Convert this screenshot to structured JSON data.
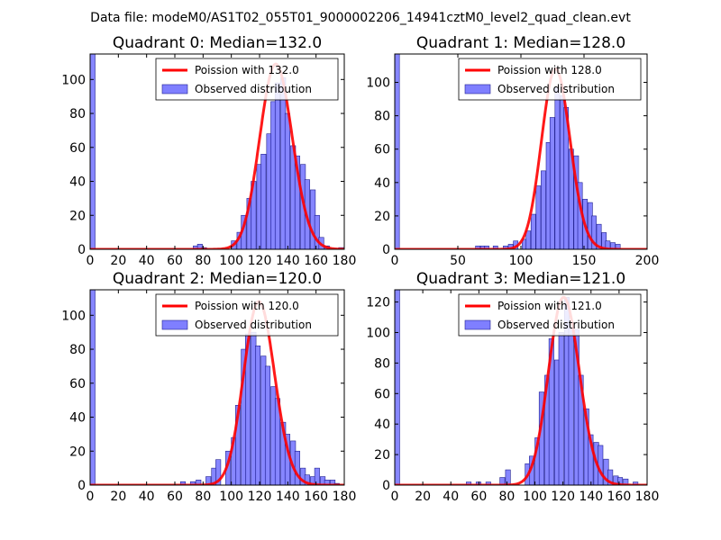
{
  "figure_title": "Data file: modeM0/AS1T02_055T01_9000002206_14941cztM0_level2_quad_clean.evt",
  "colors": {
    "poisson": "#ff0000",
    "hist_fill": "#7f7fff",
    "hist_edge": "#1f1f8f"
  },
  "chart_data": [
    {
      "type": "bar",
      "title": "Quadrant 0: Median=132.0",
      "legend": [
        "Poission with 132.0",
        "Observed distribution"
      ],
      "legend_position": "top-right",
      "xlim": [
        0,
        180
      ],
      "ylim": [
        0,
        115
      ],
      "xticks": [
        0,
        20,
        40,
        60,
        80,
        100,
        120,
        140,
        160,
        180
      ],
      "yticks": [
        0,
        20,
        40,
        60,
        80,
        100
      ],
      "lambda": 132.0,
      "peak": 109,
      "bin_width": 3.5,
      "bins": [
        [
          0,
          115
        ],
        [
          73,
          2
        ],
        [
          76,
          3
        ],
        [
          79,
          1
        ],
        [
          100,
          5
        ],
        [
          104,
          10
        ],
        [
          107,
          20
        ],
        [
          111,
          30
        ],
        [
          114,
          40
        ],
        [
          118,
          50
        ],
        [
          121,
          56
        ],
        [
          125,
          68
        ],
        [
          128,
          87
        ],
        [
          131,
          98
        ],
        [
          135,
          101
        ],
        [
          138,
          80
        ],
        [
          142,
          61
        ],
        [
          145,
          55
        ],
        [
          149,
          50
        ],
        [
          152,
          41
        ],
        [
          156,
          35
        ],
        [
          159,
          20
        ],
        [
          162,
          7
        ],
        [
          166,
          2
        ],
        [
          176,
          1
        ],
        [
          180,
          2
        ]
      ]
    },
    {
      "type": "bar",
      "title": "Quadrant 1: Median=128.0",
      "legend": [
        "Poission with 128.0",
        "Observed distribution"
      ],
      "legend_position": "top-right",
      "xlim": [
        0,
        200
      ],
      "ylim": [
        0,
        117
      ],
      "xticks": [
        0,
        50,
        100,
        150,
        200
      ],
      "yticks": [
        0,
        20,
        40,
        60,
        80,
        100
      ],
      "lambda": 128.0,
      "peak": 108,
      "bin_width": 3.7,
      "bins": [
        [
          0,
          117
        ],
        [
          64,
          2
        ],
        [
          68,
          2
        ],
        [
          71,
          2
        ],
        [
          78,
          2
        ],
        [
          86,
          2
        ],
        [
          90,
          3
        ],
        [
          94,
          5
        ],
        [
          101,
          6
        ],
        [
          104,
          11
        ],
        [
          108,
          21
        ],
        [
          112,
          38
        ],
        [
          116,
          47
        ],
        [
          120,
          64
        ],
        [
          123,
          79
        ],
        [
          127,
          97
        ],
        [
          131,
          92
        ],
        [
          134,
          85
        ],
        [
          138,
          60
        ],
        [
          142,
          56
        ],
        [
          145,
          40
        ],
        [
          149,
          30
        ],
        [
          153,
          28
        ],
        [
          156,
          20
        ],
        [
          160,
          15
        ],
        [
          164,
          10
        ],
        [
          167,
          5
        ],
        [
          171,
          4
        ],
        [
          175,
          3
        ]
      ]
    },
    {
      "type": "bar",
      "title": "Quadrant 2: Median=120.0",
      "legend": [
        "Poission with 120.0",
        "Observed distribution"
      ],
      "legend_position": "top-right",
      "xlim": [
        0,
        180
      ],
      "ylim": [
        0,
        115
      ],
      "xticks": [
        0,
        20,
        40,
        60,
        80,
        100,
        120,
        140,
        160,
        180
      ],
      "yticks": [
        0,
        20,
        40,
        60,
        80,
        100
      ],
      "lambda": 120.0,
      "peak": 108,
      "bin_width": 3.5,
      "bins": [
        [
          0,
          115
        ],
        [
          64,
          2
        ],
        [
          71,
          2
        ],
        [
          75,
          3
        ],
        [
          82,
          5
        ],
        [
          86,
          10
        ],
        [
          89,
          15
        ],
        [
          96,
          20
        ],
        [
          100,
          28
        ],
        [
          103,
          47
        ],
        [
          107,
          80
        ],
        [
          110,
          89
        ],
        [
          114,
          90
        ],
        [
          117,
          82
        ],
        [
          121,
          76
        ],
        [
          124,
          70
        ],
        [
          128,
          58
        ],
        [
          131,
          51
        ],
        [
          135,
          37
        ],
        [
          138,
          30
        ],
        [
          142,
          26
        ],
        [
          145,
          20
        ],
        [
          149,
          10
        ],
        [
          152,
          6
        ],
        [
          156,
          5
        ],
        [
          159,
          10
        ],
        [
          163,
          5
        ],
        [
          166,
          3
        ],
        [
          170,
          3
        ],
        [
          173,
          1
        ]
      ]
    },
    {
      "type": "bar",
      "title": "Quadrant 3: Median=121.0",
      "legend": [
        "Poission with 121.0",
        "Observed distribution"
      ],
      "legend_position": "top-right",
      "xlim": [
        0,
        180
      ],
      "ylim": [
        0,
        128
      ],
      "xticks": [
        0,
        20,
        40,
        60,
        80,
        100,
        120,
        140,
        160,
        180
      ],
      "yticks": [
        0,
        20,
        40,
        60,
        80,
        100,
        120
      ],
      "lambda": 121.0,
      "peak": 123,
      "bin_width": 3.5,
      "bins": [
        [
          0,
          128
        ],
        [
          51,
          2
        ],
        [
          58,
          2
        ],
        [
          65,
          2
        ],
        [
          75,
          5
        ],
        [
          79,
          10
        ],
        [
          93,
          14
        ],
        [
          96,
          19
        ],
        [
          100,
          31
        ],
        [
          103,
          61
        ],
        [
          107,
          72
        ],
        [
          110,
          96
        ],
        [
          114,
          82
        ],
        [
          117,
          100
        ],
        [
          121,
          123
        ],
        [
          124,
          103
        ],
        [
          128,
          102
        ],
        [
          131,
          72
        ],
        [
          135,
          50
        ],
        [
          138,
          33
        ],
        [
          142,
          28
        ],
        [
          145,
          26
        ],
        [
          149,
          17
        ],
        [
          152,
          10
        ],
        [
          156,
          6
        ],
        [
          159,
          5
        ],
        [
          163,
          4
        ],
        [
          170,
          2
        ]
      ]
    }
  ]
}
